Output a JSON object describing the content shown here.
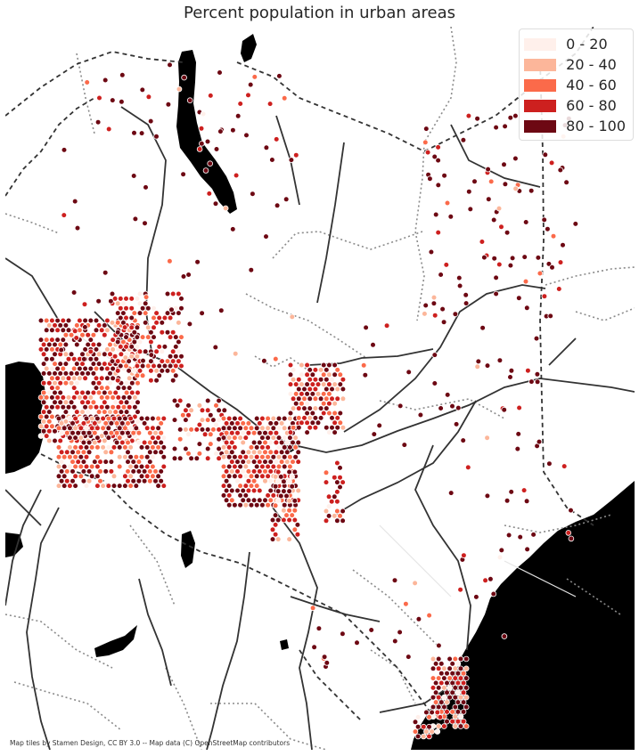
{
  "title": "Percent population in urban areas",
  "attribution": "Map tiles by Stamen Design, CC BY 3.0 -- Map data (C) OpenStreetMap contributors",
  "legend": {
    "items": [
      {
        "label": "0 - 20",
        "color": "#fff0eb"
      },
      {
        "label": "20 - 40",
        "color": "#fcb69a"
      },
      {
        "label": "40 - 60",
        "color": "#fb6a4a"
      },
      {
        "label": "60 - 80",
        "color": "#cd201f"
      },
      {
        "label": "80 - 100",
        "color": "#6d0813"
      }
    ]
  },
  "colors": {
    "water": "#000000",
    "land": "#ffffff",
    "road": "#333333",
    "border": "#333333",
    "admin": "#8a8a8a",
    "hex_edge": "#ffffff"
  },
  "icons": [
    "map-basemap",
    "hexbin-marker"
  ]
}
